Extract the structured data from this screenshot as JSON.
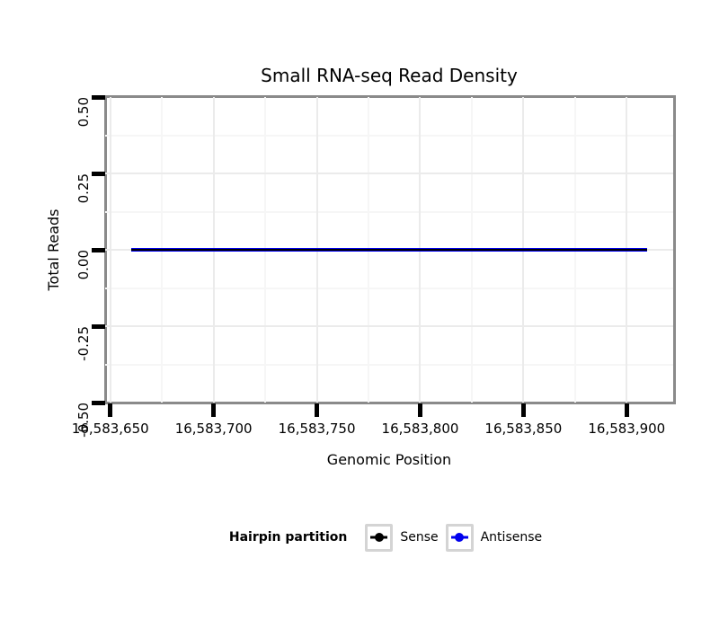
{
  "chart_data": {
    "type": "line",
    "title": "Small RNA-seq Read Density",
    "xlabel": "Genomic Position",
    "ylabel": "Total Reads",
    "xlim": [
      16583647.5,
      16583922.5
    ],
    "ylim": [
      -0.5,
      0.5
    ],
    "x_ticks": [
      16583650,
      16583700,
      16583750,
      16583800,
      16583850,
      16583900
    ],
    "x_tick_labels": [
      "16,583,650",
      "16,583,700",
      "16,583,750",
      "16,583,800",
      "16,583,850",
      "16,583,900"
    ],
    "y_ticks": [
      0.5,
      0.25,
      0,
      -0.25,
      -0.5
    ],
    "y_tick_labels": [
      "0.50",
      "0.25",
      "0.00",
      "-0.25",
      "-0.50"
    ],
    "grid": true,
    "legend_position": "bottom",
    "series": [
      {
        "name": "Sense",
        "color": "#000000",
        "x": [
          16583660,
          16583910
        ],
        "y": [
          0,
          0
        ]
      },
      {
        "name": "Antisense",
        "color": "#0000EE",
        "x": [
          16583660,
          16583910
        ],
        "y": [
          0,
          0
        ]
      }
    ]
  },
  "legend": {
    "title": "Hairpin partition",
    "items": [
      {
        "label": "Sense",
        "color": "#000000"
      },
      {
        "label": "Antisense",
        "color": "#0000EE"
      }
    ]
  }
}
